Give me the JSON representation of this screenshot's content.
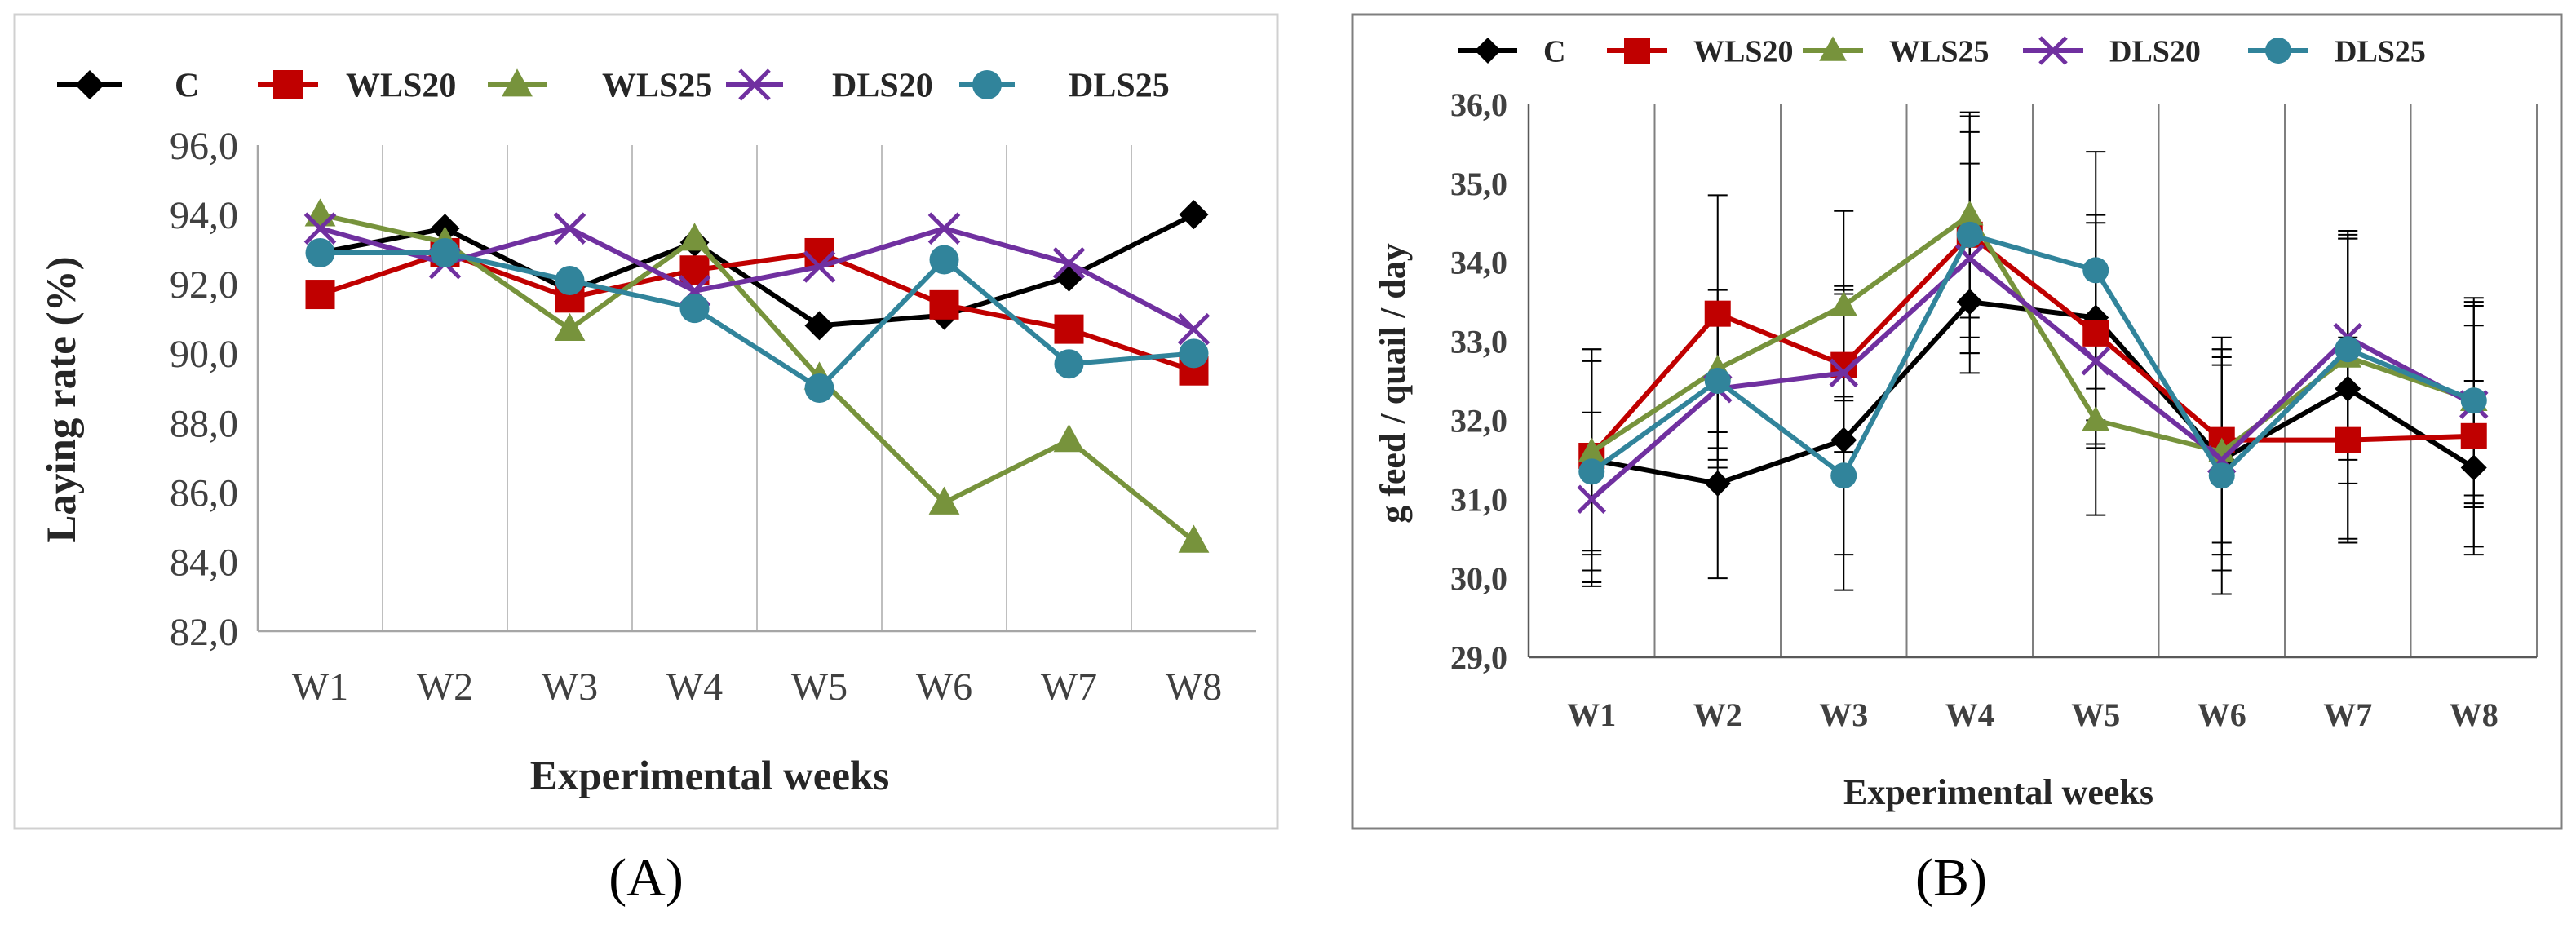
{
  "panels": [
    {
      "label": "(A)",
      "chart_data": {
        "type": "line",
        "categories": [
          "W1",
          "W2",
          "W3",
          "W4",
          "W5",
          "W6",
          "W7",
          "W8"
        ],
        "ylim": [
          82.0,
          96.0
        ],
        "yticks": [
          "82,0",
          "84,0",
          "86,0",
          "88,0",
          "90,0",
          "92,0",
          "94,0",
          "96,0"
        ],
        "ytick_values": [
          82,
          84,
          86,
          88,
          90,
          92,
          94,
          96
        ],
        "xlabel": "Experimental weeks",
        "ylabel": "Laying rate (%)",
        "title": "",
        "legend_position": "top",
        "grid": "vertical",
        "series": [
          {
            "name": "C",
            "color": "#000000",
            "marker": "diamond",
            "values": [
              92.9,
              93.6,
              91.8,
              93.2,
              90.8,
              91.1,
              92.2,
              94.0
            ]
          },
          {
            "name": "WLS20",
            "color": "#c00000",
            "marker": "square",
            "values": [
              91.7,
              92.9,
              91.6,
              92.4,
              92.9,
              91.4,
              90.7,
              89.5
            ]
          },
          {
            "name": "WLS25",
            "color": "#77933c",
            "marker": "triangle",
            "values": [
              94.0,
              93.2,
              90.7,
              93.3,
              89.3,
              85.7,
              87.5,
              84.6
            ]
          },
          {
            "name": "DLS20",
            "color": "#7030a0",
            "marker": "x",
            "values": [
              93.6,
              92.6,
              93.6,
              91.8,
              92.5,
              93.6,
              92.6,
              90.7
            ]
          },
          {
            "name": "DLS25",
            "color": "#31849b",
            "marker": "circle",
            "values": [
              92.9,
              92.9,
              92.1,
              91.3,
              89.0,
              92.7,
              89.7,
              90.0
            ]
          }
        ]
      }
    },
    {
      "label": "(B)",
      "chart_data": {
        "type": "line",
        "categories": [
          "W1",
          "W2",
          "W3",
          "W4",
          "W5",
          "W6",
          "W7",
          "W8"
        ],
        "ylim": [
          29.0,
          36.0
        ],
        "yticks": [
          "29,0",
          "30,0",
          "31,0",
          "32,0",
          "33,0",
          "34,0",
          "35,0",
          "36,0"
        ],
        "ytick_values": [
          29,
          30,
          31,
          32,
          33,
          34,
          35,
          36
        ],
        "xlabel": "Experimental weeks",
        "ylabel": "g feed / quail / day",
        "title": "",
        "legend_position": "top",
        "grid": "vertical",
        "error_bars": true,
        "series": [
          {
            "name": "C",
            "color": "#000000",
            "marker": "diamond",
            "values": [
              31.5,
              31.2,
              31.75,
              33.5,
              33.3,
              31.5,
              32.4,
              31.4
            ],
            "errors": [
              1.4,
              1.2,
              1.9,
              0.9,
              1.3,
              1.4,
              1.9,
              1.1
            ]
          },
          {
            "name": "WLS20",
            "color": "#c00000",
            "marker": "square",
            "values": [
              31.55,
              33.35,
              32.7,
              34.35,
              33.1,
              31.75,
              31.75,
              31.8
            ],
            "errors": [
              1.2,
              1.5,
              1.0,
              1.3,
              1.4,
              1.3,
              1.3,
              1.4
            ]
          },
          {
            "name": "WLS25",
            "color": "#77933c",
            "marker": "triangle",
            "values": [
              31.6,
              32.65,
              33.45,
              34.6,
              32.0,
              31.6,
              32.8,
              32.25
            ],
            "errors": [
              1.3,
              1.0,
              1.2,
              1.3,
              1.2,
              1.3,
              1.6,
              1.2
            ]
          },
          {
            "name": "DLS20",
            "color": "#7030a0",
            "marker": "x",
            "values": [
              31.0,
              32.4,
              32.6,
              34.05,
              32.75,
              31.5,
              33.05,
              32.2
            ],
            "errors": [
              1.1,
              1.0,
              1.0,
              1.2,
              1.1,
              1.2,
              1.3,
              1.3
            ]
          },
          {
            "name": "DLS25",
            "color": "#31849b",
            "marker": "circle",
            "values": [
              31.35,
              32.5,
              31.3,
              34.35,
              33.9,
              31.3,
              32.9,
              32.25
            ],
            "errors": [
              1.4,
              1.0,
              1.0,
              1.5,
              1.5,
              1.5,
              1.4,
              1.3
            ]
          }
        ]
      }
    }
  ]
}
